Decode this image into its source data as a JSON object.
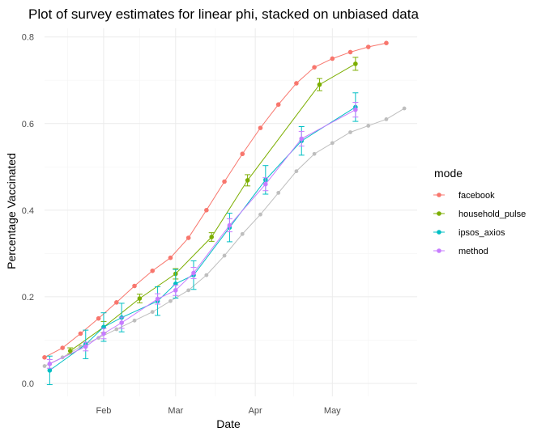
{
  "chart_data": {
    "type": "line",
    "title": "Plot of survey estimates for linear phi, stacked on unbiased data",
    "xlabel": "Date",
    "ylabel": "Percentage Vaccinated",
    "x_type": "date",
    "xlim": [
      "2021-01-09",
      "2021-06-03"
    ],
    "ylim": [
      -0.03,
      0.82
    ],
    "x_ticks": [
      {
        "date": "2021-02-01",
        "label": "Feb"
      },
      {
        "date": "2021-03-01",
        "label": "Mar"
      },
      {
        "date": "2021-04-01",
        "label": "Apr"
      },
      {
        "date": "2021-05-01",
        "label": "May"
      }
    ],
    "y_ticks": [
      0.0,
      0.2,
      0.4,
      0.6,
      0.8
    ],
    "y_tick_labels": [
      "0.0",
      "0.2",
      "0.4",
      "0.6",
      "0.8"
    ],
    "grid": true,
    "legend": {
      "title": "mode",
      "position": "right"
    },
    "baseline": {
      "color": "#bebebe",
      "points": [
        {
          "x": "2021-01-09",
          "y": 0.04
        },
        {
          "x": "2021-01-16",
          "y": 0.06
        },
        {
          "x": "2021-01-23",
          "y": 0.085
        },
        {
          "x": "2021-01-30",
          "y": 0.105
        },
        {
          "x": "2021-02-06",
          "y": 0.125
        },
        {
          "x": "2021-02-13",
          "y": 0.145
        },
        {
          "x": "2021-02-20",
          "y": 0.165
        },
        {
          "x": "2021-02-27",
          "y": 0.19
        },
        {
          "x": "2021-03-06",
          "y": 0.215
        },
        {
          "x": "2021-03-13",
          "y": 0.25
        },
        {
          "x": "2021-03-20",
          "y": 0.295
        },
        {
          "x": "2021-03-27",
          "y": 0.345
        },
        {
          "x": "2021-04-03",
          "y": 0.39
        },
        {
          "x": "2021-04-10",
          "y": 0.44
        },
        {
          "x": "2021-04-17",
          "y": 0.49
        },
        {
          "x": "2021-04-24",
          "y": 0.53
        },
        {
          "x": "2021-05-01",
          "y": 0.555
        },
        {
          "x": "2021-05-08",
          "y": 0.58
        },
        {
          "x": "2021-05-15",
          "y": 0.595
        },
        {
          "x": "2021-05-22",
          "y": 0.61
        },
        {
          "x": "2021-05-29",
          "y": 0.635
        }
      ]
    },
    "series": [
      {
        "name": "facebook",
        "color": "#F8766D",
        "points": [
          {
            "x": "2021-01-09",
            "y": 0.06
          },
          {
            "x": "2021-01-16",
            "y": 0.082
          },
          {
            "x": "2021-01-23",
            "y": 0.115
          },
          {
            "x": "2021-01-30",
            "y": 0.15
          },
          {
            "x": "2021-02-06",
            "y": 0.187
          },
          {
            "x": "2021-02-13",
            "y": 0.225
          },
          {
            "x": "2021-02-20",
            "y": 0.26
          },
          {
            "x": "2021-02-27",
            "y": 0.29
          },
          {
            "x": "2021-03-06",
            "y": 0.336
          },
          {
            "x": "2021-03-13",
            "y": 0.4
          },
          {
            "x": "2021-03-20",
            "y": 0.466
          },
          {
            "x": "2021-03-27",
            "y": 0.53
          },
          {
            "x": "2021-04-03",
            "y": 0.59
          },
          {
            "x": "2021-04-10",
            "y": 0.644
          },
          {
            "x": "2021-04-17",
            "y": 0.693
          },
          {
            "x": "2021-04-24",
            "y": 0.73
          },
          {
            "x": "2021-05-01",
            "y": 0.75
          },
          {
            "x": "2021-05-08",
            "y": 0.765
          },
          {
            "x": "2021-05-15",
            "y": 0.777
          },
          {
            "x": "2021-05-22",
            "y": 0.786
          }
        ]
      },
      {
        "name": "household_pulse",
        "color": "#7CAE00",
        "points": [
          {
            "x": "2021-01-19",
            "y": 0.075,
            "lo": 0.068,
            "hi": 0.082
          },
          {
            "x": "2021-02-01",
            "y": 0.13,
            "lo": 0.117,
            "hi": 0.143
          },
          {
            "x": "2021-02-15",
            "y": 0.196,
            "lo": 0.186,
            "hi": 0.206
          },
          {
            "x": "2021-03-01",
            "y": 0.253,
            "lo": 0.241,
            "hi": 0.265
          },
          {
            "x": "2021-03-15",
            "y": 0.338,
            "lo": 0.328,
            "hi": 0.348
          },
          {
            "x": "2021-03-29",
            "y": 0.469,
            "lo": 0.456,
            "hi": 0.482
          },
          {
            "x": "2021-04-26",
            "y": 0.69,
            "lo": 0.676,
            "hi": 0.704
          },
          {
            "x": "2021-05-10",
            "y": 0.738,
            "lo": 0.723,
            "hi": 0.753
          }
        ]
      },
      {
        "name": "ipsos_axios",
        "color": "#00BFC4",
        "points": [
          {
            "x": "2021-01-11",
            "y": 0.03,
            "lo": -0.003,
            "hi": 0.063
          },
          {
            "x": "2021-01-25",
            "y": 0.09,
            "lo": 0.057,
            "hi": 0.123
          },
          {
            "x": "2021-02-01",
            "y": 0.13,
            "lo": 0.097,
            "hi": 0.163
          },
          {
            "x": "2021-02-08",
            "y": 0.152,
            "lo": 0.119,
            "hi": 0.185
          },
          {
            "x": "2021-02-22",
            "y": 0.19,
            "lo": 0.157,
            "hi": 0.223
          },
          {
            "x": "2021-03-01",
            "y": 0.23,
            "lo": 0.197,
            "hi": 0.263
          },
          {
            "x": "2021-03-08",
            "y": 0.25,
            "lo": 0.217,
            "hi": 0.283
          },
          {
            "x": "2021-03-22",
            "y": 0.36,
            "lo": 0.327,
            "hi": 0.393
          },
          {
            "x": "2021-04-05",
            "y": 0.47,
            "lo": 0.437,
            "hi": 0.503
          },
          {
            "x": "2021-04-19",
            "y": 0.56,
            "lo": 0.527,
            "hi": 0.593
          },
          {
            "x": "2021-05-10",
            "y": 0.638,
            "lo": 0.605,
            "hi": 0.671
          }
        ]
      },
      {
        "name": "method",
        "color": "#C77CFF",
        "points": [
          {
            "x": "2021-01-11",
            "y": 0.045,
            "lo": 0.035,
            "hi": 0.055
          },
          {
            "x": "2021-01-25",
            "y": 0.085,
            "lo": 0.075,
            "hi": 0.095
          },
          {
            "x": "2021-02-01",
            "y": 0.115,
            "lo": 0.103,
            "hi": 0.127
          },
          {
            "x": "2021-02-08",
            "y": 0.14,
            "lo": 0.127,
            "hi": 0.153
          },
          {
            "x": "2021-02-22",
            "y": 0.195,
            "lo": 0.183,
            "hi": 0.207
          },
          {
            "x": "2021-03-01",
            "y": 0.215,
            "lo": 0.203,
            "hi": 0.227
          },
          {
            "x": "2021-03-08",
            "y": 0.255,
            "lo": 0.242,
            "hi": 0.268
          },
          {
            "x": "2021-03-22",
            "y": 0.365,
            "lo": 0.35,
            "hi": 0.38
          },
          {
            "x": "2021-04-05",
            "y": 0.46,
            "lo": 0.445,
            "hi": 0.475
          },
          {
            "x": "2021-04-19",
            "y": 0.565,
            "lo": 0.548,
            "hi": 0.582
          },
          {
            "x": "2021-05-10",
            "y": 0.632,
            "lo": 0.615,
            "hi": 0.649
          }
        ]
      }
    ]
  }
}
